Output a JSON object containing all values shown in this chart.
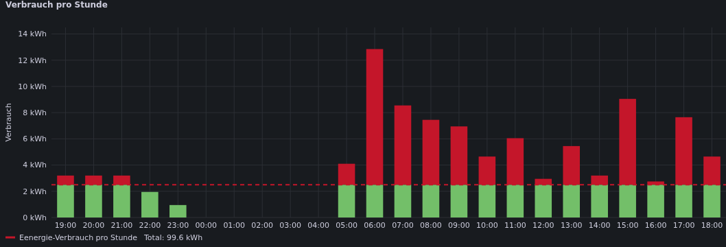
{
  "chart_data": {
    "type": "bar",
    "title": "Verbrauch pro Stunde",
    "ylabel": "Verbrauch",
    "stacked": true,
    "grid": true,
    "legend": "bottom left",
    "categories": [
      "19:00",
      "20:00",
      "21:00",
      "22:00",
      "23:00",
      "00:00",
      "01:00",
      "02:00",
      "03:00",
      "04:00",
      "05:00",
      "06:00",
      "07:00",
      "08:00",
      "09:00",
      "10:00",
      "11:00",
      "12:00",
      "13:00",
      "14:00",
      "15:00",
      "16:00",
      "17:00",
      "18:00"
    ],
    "series": [
      {
        "color": "#73bf69",
        "values": [
          2.5,
          2.5,
          2.5,
          1.95,
          0.95,
          0,
          0,
          0,
          0,
          0,
          2.5,
          2.5,
          2.5,
          2.5,
          2.5,
          2.5,
          2.5,
          2.5,
          2.5,
          2.5,
          2.5,
          2.5,
          2.5,
          2.5
        ]
      },
      {
        "name": "Eenergie-Verbrauch pro Stunde",
        "color": "#c4162a",
        "values": [
          0.7,
          0.7,
          0.7,
          null,
          null,
          null,
          null,
          null,
          null,
          null,
          1.6,
          10.35,
          6.05,
          4.95,
          4.45,
          2.15,
          3.55,
          0.45,
          2.95,
          0.7,
          6.55,
          0.25,
          5.15,
          2.15
        ]
      }
    ],
    "ylim": [
      0,
      14.5
    ],
    "yticks": [
      {
        "value": 0,
        "label": "0 kWh"
      },
      {
        "value": 2,
        "label": "2 kWh"
      },
      {
        "value": 4,
        "label": "4 kWh"
      },
      {
        "value": 6,
        "label": "6 kWh"
      },
      {
        "value": 8,
        "label": "8 kWh"
      },
      {
        "value": 10,
        "label": "10 kWh"
      },
      {
        "value": 12,
        "label": "12 kWh"
      },
      {
        "value": 14,
        "label": "14 kWh"
      }
    ],
    "ref_lines": [
      {
        "axis": "y",
        "value": 2.5,
        "color": "#c4162a",
        "line_style": "dashed"
      }
    ],
    "annotations": [
      "Total: 99.6 kWh"
    ]
  }
}
